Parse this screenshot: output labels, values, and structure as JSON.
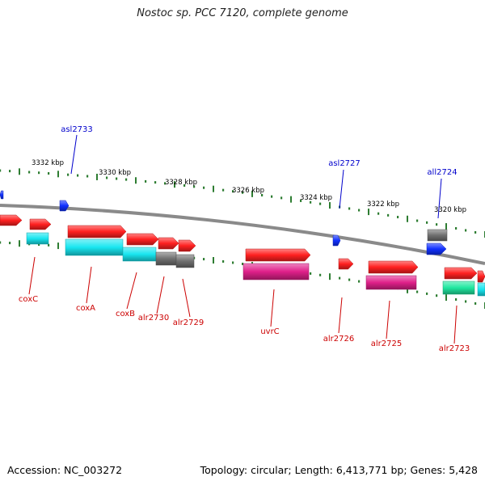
{
  "title": "Nostoc sp. PCC 7120, complete genome",
  "footer": {
    "accession": "Accession: NC_003272",
    "summary": "Topology: circular; Length: 6,413,771 bp; Genes: 5,428"
  },
  "colors": {
    "backbone": "#8a8a8a",
    "tick": "#2e7d32",
    "gene_red": "#ff2020",
    "cds_cyan": "#18e6f0",
    "cds_grey": "#707070",
    "cds_magenta": "#e0208a",
    "cds_green": "#20e8a0",
    "gene_blue": "#1030ff",
    "label_red": "#cc0000",
    "label_blue": "#0000cc"
  },
  "scale_labels": [
    "3332 kbp",
    "3330 kbp",
    "3328 kbp",
    "3326 kbp",
    "3324 kbp",
    "3322 kbp",
    "3320 kbp"
  ],
  "gene_labels_top": [
    "asl2733",
    "asl2727",
    "all2724"
  ],
  "gene_labels_bottom": [
    "coxC",
    "coxA",
    "coxB",
    "alr2730",
    "alr2729",
    "uvrC",
    "alr2726",
    "alr2725",
    "alr2723"
  ]
}
